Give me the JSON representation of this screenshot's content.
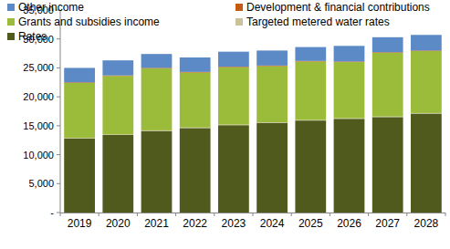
{
  "chart_data": {
    "type": "bar",
    "stacked": true,
    "grid": false,
    "legend": "top-left",
    "categories": [
      "2019",
      "2020",
      "2021",
      "2022",
      "2023",
      "2024",
      "2025",
      "2026",
      "2027",
      "2028"
    ],
    "series": [
      {
        "name": "Rates",
        "color": "#4f5a1c",
        "values": [
          12800,
          13400,
          14100,
          14600,
          15100,
          15500,
          15900,
          16200,
          16500,
          17100
        ]
      },
      {
        "name": "Targeted metered water rates",
        "color": "#c9c29a",
        "values": [
          100,
          100,
          100,
          100,
          100,
          100,
          100,
          100,
          100,
          100
        ]
      },
      {
        "name": "Grants and subsidies income",
        "color": "#9bbb3b",
        "values": [
          9500,
          10100,
          10700,
          9500,
          9900,
          9700,
          10100,
          9700,
          11000,
          10700
        ]
      },
      {
        "name": "Development & financial contributions",
        "color": "#c55a11",
        "values": [
          100,
          100,
          100,
          100,
          100,
          100,
          100,
          100,
          100,
          100
        ]
      },
      {
        "name": "Other income",
        "color": "#5b8ac6",
        "values": [
          2500,
          2600,
          2400,
          2500,
          2600,
          2600,
          2400,
          2700,
          2600,
          2700
        ]
      }
    ],
    "ylim": [
      0,
      35000
    ],
    "yticks": [
      {
        "value": 0,
        "label": "-"
      },
      {
        "value": 5000,
        "label": "5,000"
      },
      {
        "value": 10000,
        "label": "10,000"
      },
      {
        "value": 15000,
        "label": "15,000"
      },
      {
        "value": 20000,
        "label": "20,000"
      },
      {
        "value": 25000,
        "label": "25,000"
      },
      {
        "value": 30000,
        "label": "30,000"
      },
      {
        "value": 35000,
        "label": "35,000"
      }
    ]
  }
}
